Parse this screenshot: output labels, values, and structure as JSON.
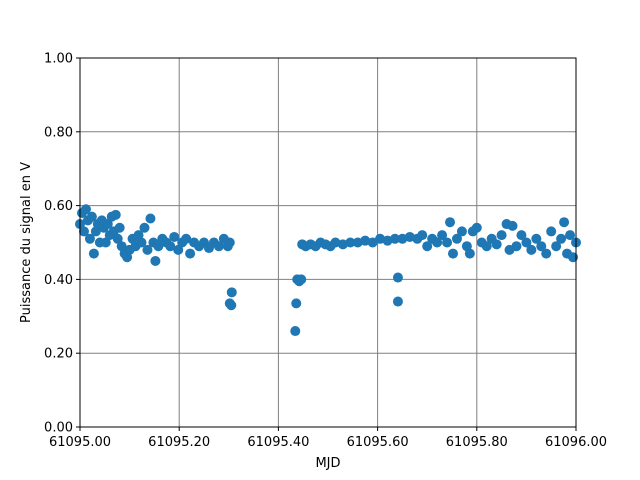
{
  "chart_data": {
    "type": "scatter",
    "xlabel": "MJD",
    "ylabel": "Puissance du signal en V",
    "color": "#1f77b4",
    "grid": true,
    "xlim": [
      61095.0,
      61096.0
    ],
    "xticks": [
      {
        "value": 61095.0,
        "label": "61095.00"
      },
      {
        "value": 61095.2,
        "label": "61095.20"
      },
      {
        "value": 61095.4,
        "label": "61095.40"
      },
      {
        "value": 61095.6,
        "label": "61095.60"
      },
      {
        "value": 61095.8,
        "label": "61095.80"
      },
      {
        "value": 61096.0,
        "label": "61096.00"
      }
    ],
    "ylim": [
      0,
      1
    ],
    "yticks": [
      {
        "value": 0,
        "label": "0.00"
      },
      {
        "value": 0.2,
        "label": "0.20"
      },
      {
        "value": 0.4,
        "label": "0.40"
      },
      {
        "value": 0.6,
        "label": "0.60"
      },
      {
        "value": 0.8,
        "label": "0.80"
      },
      {
        "value": 1,
        "label": "1.00"
      }
    ],
    "x": [
      61095.0,
      61095.004,
      61095.008,
      61095.012,
      61095.016,
      61095.02,
      61095.024,
      61095.028,
      61095.032,
      61095.036,
      61095.04,
      61095.044,
      61095.048,
      61095.052,
      61095.056,
      61095.06,
      61095.064,
      61095.068,
      61095.072,
      61095.076,
      61095.08,
      61095.084,
      61095.09,
      61095.095,
      61095.1,
      61095.106,
      61095.112,
      61095.118,
      61095.124,
      61095.13,
      61095.136,
      61095.142,
      61095.148,
      61095.152,
      61095.158,
      61095.166,
      61095.174,
      61095.182,
      61095.19,
      61095.198,
      61095.206,
      61095.214,
      61095.222,
      61095.23,
      61095.24,
      61095.25,
      61095.26,
      61095.27,
      61095.28,
      61095.29,
      61095.298,
      61095.302,
      61095.302,
      61095.305,
      61095.306,
      61095.434,
      61095.436,
      61095.438,
      61095.442,
      61095.446,
      61095.448,
      61095.455,
      61095.465,
      61095.475,
      61095.485,
      61095.495,
      61095.505,
      61095.515,
      61095.53,
      61095.545,
      61095.56,
      61095.575,
      61095.59,
      61095.605,
      61095.62,
      61095.635,
      61095.641,
      61095.641,
      61095.65,
      61095.665,
      61095.68,
      61095.69,
      61095.7,
      61095.71,
      61095.72,
      61095.73,
      61095.74,
      61095.746,
      61095.752,
      61095.76,
      61095.77,
      61095.78,
      61095.786,
      61095.792,
      61095.8,
      61095.81,
      61095.82,
      61095.83,
      61095.84,
      61095.85,
      61095.86,
      61095.866,
      61095.872,
      61095.88,
      61095.89,
      61095.9,
      61095.91,
      61095.92,
      61095.93,
      61095.94,
      61095.95,
      61095.96,
      61095.97,
      61095.976,
      61095.982,
      61095.988,
      61095.994,
      61096.0
    ],
    "values": [
      0.55,
      0.58,
      0.53,
      0.59,
      0.56,
      0.51,
      0.57,
      0.47,
      0.53,
      0.55,
      0.5,
      0.56,
      0.54,
      0.5,
      0.55,
      0.52,
      0.57,
      0.53,
      0.575,
      0.51,
      0.54,
      0.49,
      0.47,
      0.46,
      0.48,
      0.51,
      0.49,
      0.52,
      0.5,
      0.54,
      0.48,
      0.565,
      0.5,
      0.45,
      0.49,
      0.51,
      0.5,
      0.49,
      0.515,
      0.48,
      0.5,
      0.51,
      0.47,
      0.5,
      0.49,
      0.5,
      0.485,
      0.5,
      0.49,
      0.51,
      0.49,
      0.5,
      0.335,
      0.33,
      0.365,
      0.26,
      0.335,
      0.4,
      0.395,
      0.4,
      0.495,
      0.49,
      0.495,
      0.49,
      0.5,
      0.495,
      0.49,
      0.5,
      0.495,
      0.5,
      0.5,
      0.505,
      0.5,
      0.51,
      0.505,
      0.51,
      0.405,
      0.34,
      0.51,
      0.515,
      0.51,
      0.52,
      0.49,
      0.51,
      0.5,
      0.52,
      0.5,
      0.555,
      0.47,
      0.51,
      0.53,
      0.49,
      0.47,
      0.53,
      0.54,
      0.5,
      0.49,
      0.51,
      0.495,
      0.52,
      0.55,
      0.48,
      0.545,
      0.49,
      0.52,
      0.5,
      0.48,
      0.51,
      0.49,
      0.47,
      0.53,
      0.49,
      0.51,
      0.555,
      0.47,
      0.52,
      0.46,
      0.5
    ]
  }
}
